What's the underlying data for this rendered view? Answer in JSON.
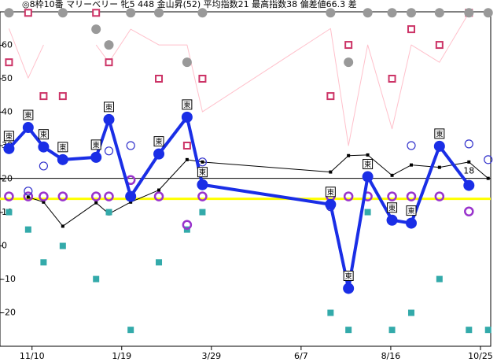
{
  "chart_data": {
    "type": "line",
    "title": "◎8枠10番 マリーベリー 牝5 448 金山昇(52) 平均指数21 最高指数38 偏差値66.3 差",
    "x": [
      -18,
      -3,
      9,
      24,
      50,
      60,
      77,
      99,
      121,
      133,
      233,
      247,
      262,
      281,
      296,
      318,
      341,
      356
    ],
    "xlim": [
      -25,
      358
    ],
    "xticks": [
      {
        "value": 0,
        "label": "11/10"
      },
      {
        "value": 70,
        "label": "1/19"
      },
      {
        "value": 140,
        "label": "3/29"
      },
      {
        "value": 210,
        "label": "6/7"
      },
      {
        "value": 280,
        "label": "8/16"
      },
      {
        "value": 350,
        "label": "10/25"
      }
    ],
    "ylim": [
      -30,
      70
    ],
    "yticks": [
      -20,
      -10,
      0,
      10,
      20,
      30,
      40,
      50,
      60
    ],
    "hlines": [
      {
        "value": 20.2,
        "color": "#000000"
      },
      {
        "value": 14.1,
        "color": "#ffff00"
      }
    ],
    "series": [
      {
        "color": "#ffc0cb",
        "line": 1,
        "values": [
          65,
          50.2,
          60.1,
          null,
          60.1,
          54.9,
          64.8,
          60.1,
          60.1,
          40.1,
          65,
          30,
          60.1,
          35,
          60.1,
          54.9,
          69.7,
          null
        ]
      },
      {
        "color": "#000000",
        "line": 1,
        "marker": "dot",
        "values": [
          null,
          14.6,
          13.1,
          5.9,
          12.9,
          9.6,
          13.1,
          16.7,
          25.8,
          25.1,
          22.1,
          27.0,
          27.2,
          21.1,
          24.2,
          23.5,
          25.1,
          20.2
        ]
      },
      {
        "color": "#cc3366",
        "marker": "square",
        "values": [
          54.9,
          69.7,
          44.8,
          44.8,
          69.7,
          54.9,
          null,
          50,
          30,
          50,
          44.8,
          60.1,
          null,
          50,
          64.8,
          60.1,
          69.7,
          null
        ]
      },
      {
        "color": "#999999",
        "marker": "disc",
        "values": [
          69.7,
          null,
          null,
          69.7,
          64.8,
          60.1,
          69.7,
          69.7,
          54.9,
          69.7,
          69.7,
          54.9,
          69.7,
          69.7,
          69.7,
          69.7,
          69.7,
          69.7
        ]
      },
      {
        "color": "#33aaaa",
        "marker": "fill",
        "values": [
          10.1,
          4.9,
          -4.9,
          0,
          -9.9,
          10.1,
          -25.1,
          -4.9,
          4.9,
          10.1,
          -20,
          -25.1,
          10.1,
          -25.1,
          -20,
          -9.9,
          -25.1,
          -25.1
        ]
      },
      {
        "color": "#9933cc",
        "marker": "ring",
        "values": [
          14.8,
          14.8,
          14.8,
          14.8,
          14.8,
          14.8,
          19.7,
          14.8,
          6.3,
          14.8,
          14.8,
          14.8,
          14.8,
          14.8,
          14.8,
          14.8,
          10.3,
          null
        ]
      },
      {
        "color": "#3333cc",
        "marker": "open",
        "values": [
          null,
          16.4,
          23.9,
          null,
          null,
          28.4,
          30,
          null,
          42.3,
          25.1,
          11.7,
          null,
          null,
          null,
          30,
          null,
          30.5,
          25.8
        ]
      },
      {
        "color": "#1a2ee6",
        "line": 4,
        "marker": "big",
        "values": [
          29.1,
          35.4,
          29.6,
          25.8,
          26.5,
          37.8,
          14.8,
          27.5,
          38.5,
          18.3,
          12.4,
          -12.7,
          20.7,
          7.7,
          6.8,
          29.8,
          18.1,
          null
        ]
      }
    ],
    "badges": [
      "東",
      "東",
      "東",
      "東",
      "東",
      "東",
      null,
      "東",
      "東",
      "東",
      "東",
      "東",
      "東",
      "東",
      "東",
      "東",
      null,
      null
    ],
    "point_note": {
      "index": 16,
      "text": "18"
    }
  }
}
